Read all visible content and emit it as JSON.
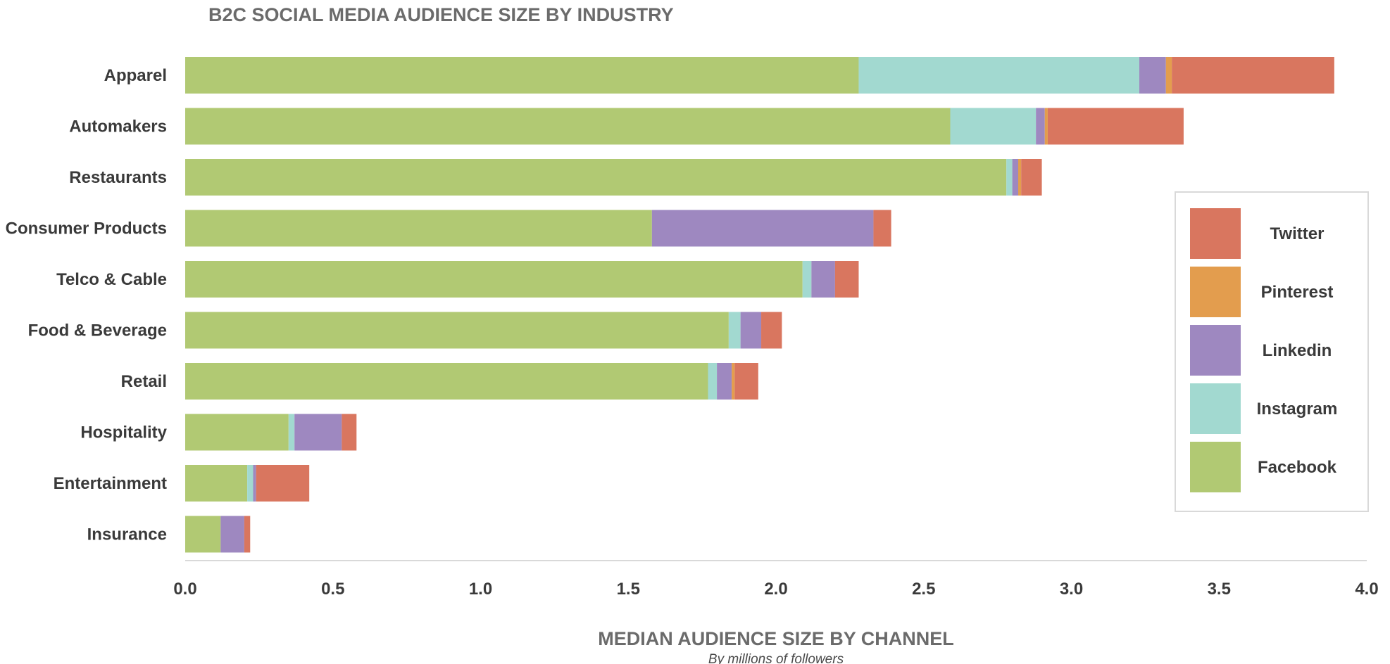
{
  "chart_data": {
    "type": "bar",
    "orientation": "horizontal",
    "stacked": true,
    "title": "B2C SOCIAL MEDIA AUDIENCE SIZE BY INDUSTRY",
    "xlabel": "MEDIAN AUDIENCE SIZE BY CHANNEL",
    "xlabel_sub": "By millions of followers",
    "xlim": [
      0,
      4.0
    ],
    "xticks": [
      "0.0",
      "0.5",
      "1.0",
      "1.5",
      "2.0",
      "2.5",
      "3.0",
      "3.5",
      "4.0"
    ],
    "grid": false,
    "legend_position": "right",
    "categories": [
      "Apparel",
      "Automakers",
      "Restaurants",
      "Consumer Products",
      "Telco & Cable",
      "Food & Beverage",
      "Retail",
      "Hospitality",
      "Entertainment",
      "Insurance"
    ],
    "series": [
      {
        "name": "Facebook",
        "color": "#b1c973",
        "values": [
          2.28,
          2.59,
          2.78,
          1.58,
          2.09,
          1.84,
          1.77,
          0.35,
          0.21,
          0.12
        ]
      },
      {
        "name": "Instagram",
        "color": "#a2d9d0",
        "values": [
          0.95,
          0.29,
          0.02,
          0.0,
          0.03,
          0.04,
          0.03,
          0.02,
          0.02,
          0.0
        ]
      },
      {
        "name": "Linkedin",
        "color": "#9e88c0",
        "values": [
          0.09,
          0.03,
          0.02,
          0.75,
          0.08,
          0.07,
          0.05,
          0.16,
          0.01,
          0.08
        ]
      },
      {
        "name": "Pinterest",
        "color": "#e39d4e",
        "values": [
          0.02,
          0.01,
          0.01,
          0.0,
          0.0,
          0.0,
          0.01,
          0.0,
          0.0,
          0.0
        ]
      },
      {
        "name": "Twitter",
        "color": "#d9765f",
        "values": [
          0.55,
          0.46,
          0.07,
          0.06,
          0.08,
          0.07,
          0.08,
          0.05,
          0.18,
          0.02
        ]
      }
    ],
    "legend_order": [
      "Twitter",
      "Pinterest",
      "Linkedin",
      "Instagram",
      "Facebook"
    ]
  }
}
